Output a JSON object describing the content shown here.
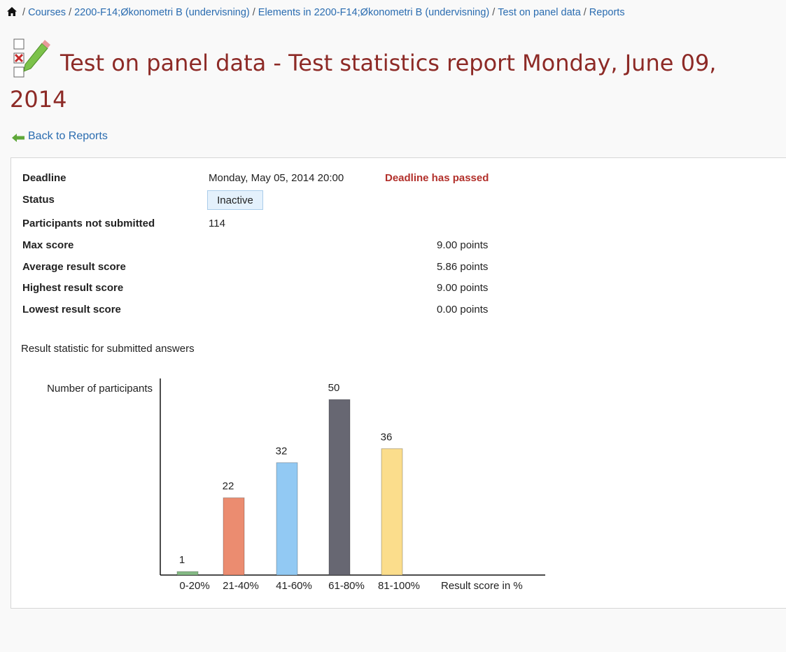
{
  "breadcrumb": {
    "separator": "/",
    "items": [
      "Courses",
      "2200-F14;Økonometri B (undervisning)",
      "Elements in 2200-F14;Økonometri B (undervisning)",
      "Test on panel data",
      "Reports"
    ]
  },
  "title": "Test on panel data - Test statistics report Monday, June 09, 2014",
  "back_link": "Back to Reports",
  "details": {
    "deadline": {
      "label": "Deadline",
      "value": "Monday, May 05, 2014 20:00",
      "note": "Deadline has passed"
    },
    "status": {
      "label": "Status",
      "value": "Inactive"
    },
    "not_submitted": {
      "label": "Participants not submitted",
      "value": 114
    },
    "scores": [
      {
        "label": "Max score",
        "value": "9.00 points"
      },
      {
        "label": "Average result score",
        "value": "5.86 points"
      },
      {
        "label": "Highest result score",
        "value": "9.00 points"
      },
      {
        "label": "Lowest result score",
        "value": "0.00 points"
      }
    ]
  },
  "section_title": "Result statistic for submitted answers",
  "chart_data": {
    "type": "bar",
    "y_label": "Number of participants",
    "x_label": "Result score in %",
    "categories": [
      "0-20%",
      "21-40%",
      "41-60%",
      "61-80%",
      "81-100%"
    ],
    "values": [
      1,
      22,
      32,
      50,
      36
    ],
    "colors": [
      "#86bb86",
      "#eb8c70",
      "#92c9f3",
      "#676772",
      "#fbdd8c"
    ],
    "ylim": [
      0,
      56
    ]
  }
}
